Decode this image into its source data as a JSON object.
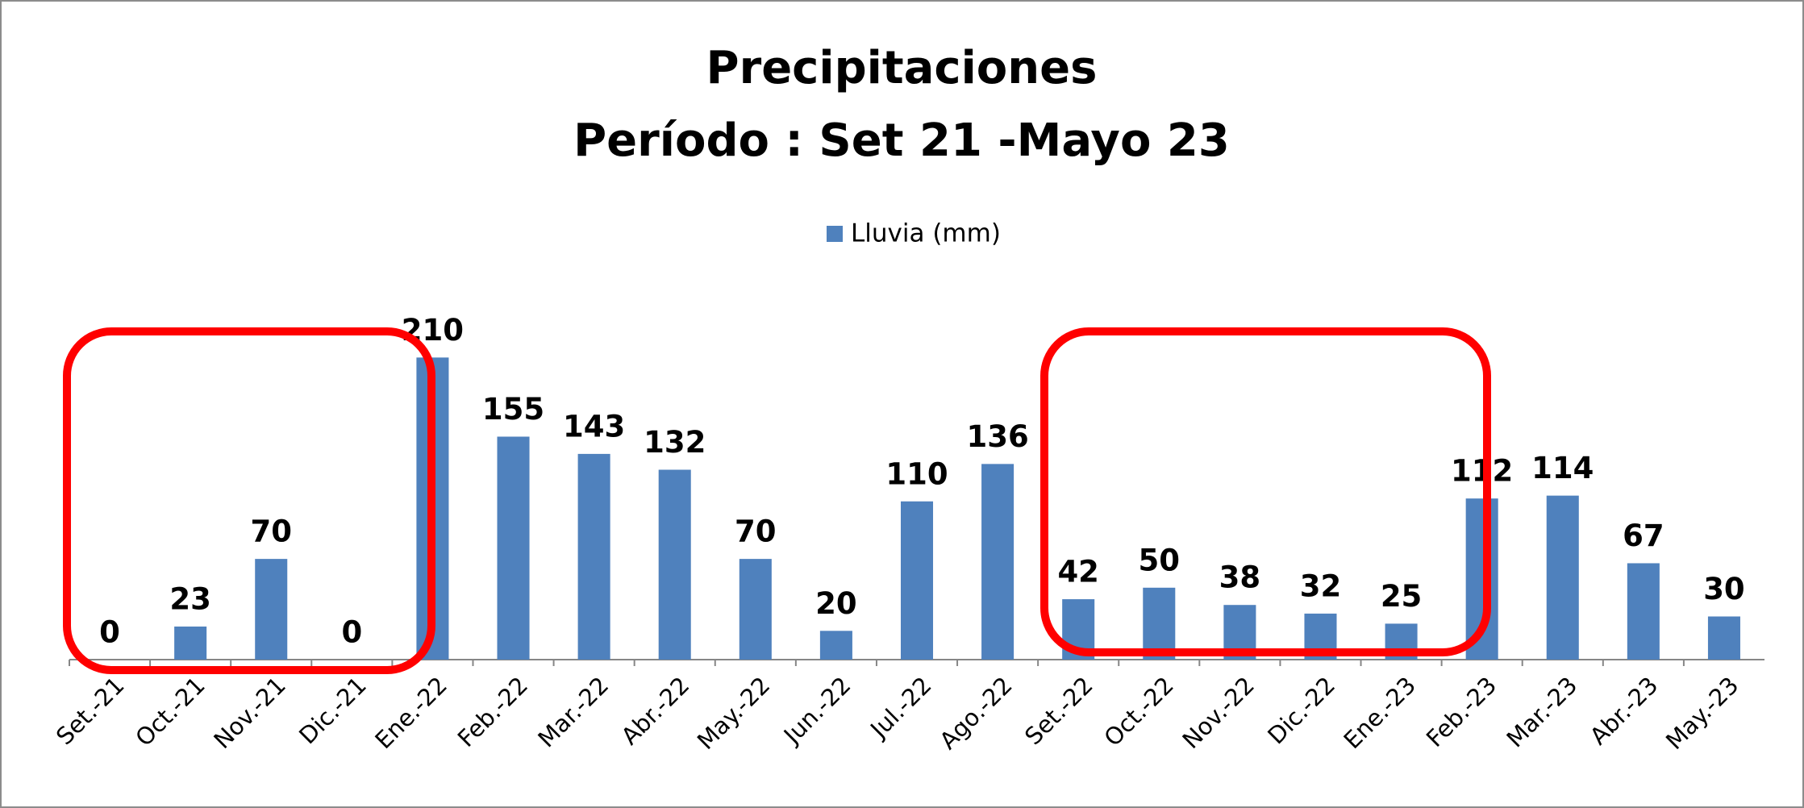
{
  "chart_data": {
    "type": "bar",
    "title": [
      "Precipitaciones",
      "Período : Set 21 -Mayo 23"
    ],
    "categories": [
      "Set.-21",
      "Oct.-21",
      "Nov.-21",
      "Dic.-21",
      "Ene.-22",
      "Feb.-22",
      "Mar.-22",
      "Abr.-22",
      "May.-22",
      "Jun.-22",
      "Jul.-22",
      "Ago.-22",
      "Set.-22",
      "Oct.-22",
      "Nov.-22",
      "Dic.-22",
      "Ene.-23",
      "Feb.-23",
      "Mar.-23",
      "Abr.-23",
      "May.-23"
    ],
    "series": [
      {
        "name": "Lluvia (mm)",
        "color": "#4f81bd",
        "values": [
          0,
          23,
          70,
          0,
          210,
          155,
          143,
          132,
          70,
          20,
          110,
          136,
          42,
          50,
          38,
          32,
          25,
          112,
          114,
          67,
          30
        ]
      }
    ],
    "ylim": [
      0,
      250
    ],
    "legend": "top"
  }
}
